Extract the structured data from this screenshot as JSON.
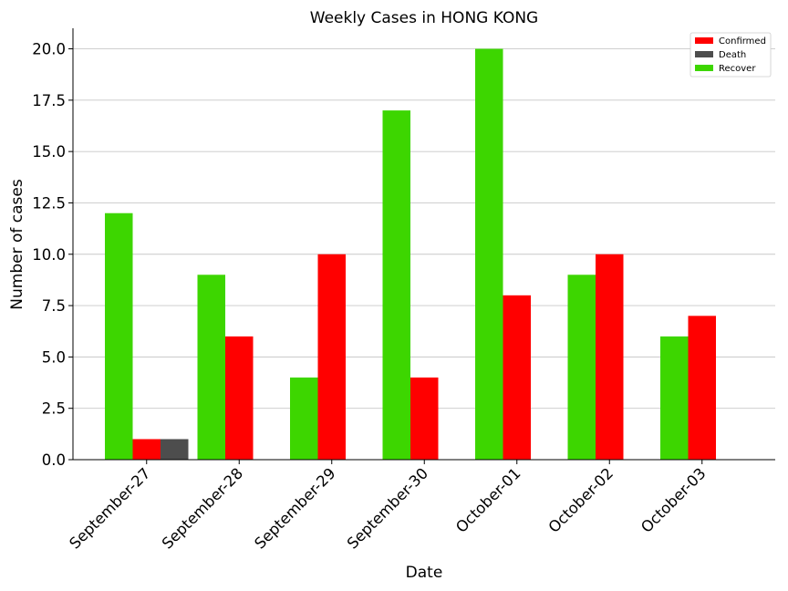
{
  "chart_data": {
    "type": "bar",
    "title": "Weekly Cases in HONG KONG",
    "xlabel": "Date",
    "ylabel": "Number of cases",
    "categories": [
      "September-27",
      "September-28",
      "September-29",
      "September-30",
      "October-01",
      "October-02",
      "October-03"
    ],
    "series": [
      {
        "name": "Recover",
        "color": "#3dd600",
        "values": [
          12,
          9,
          4,
          17,
          20,
          9,
          6
        ]
      },
      {
        "name": "Confirmed",
        "color": "#ff0000",
        "values": [
          1,
          6,
          10,
          4,
          8,
          10,
          7
        ]
      },
      {
        "name": "Death",
        "color": "#4d4d4d",
        "values": [
          1,
          0,
          0,
          0,
          0,
          0,
          0
        ]
      }
    ],
    "legend_order": [
      "Confirmed",
      "Death",
      "Recover"
    ],
    "ylim": [
      0,
      21
    ],
    "yticks": [
      "0.0",
      "2.5",
      "5.0",
      "7.5",
      "10.0",
      "12.5",
      "15.0",
      "17.5",
      "20.0"
    ],
    "grid": "horizontal",
    "legend_position": "top-right"
  }
}
